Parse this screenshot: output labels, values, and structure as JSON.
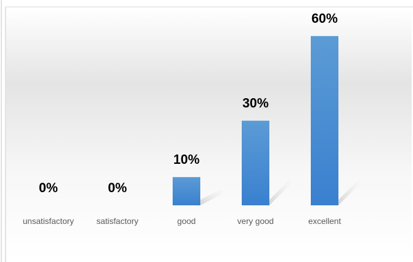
{
  "chart_data": {
    "type": "bar",
    "categories": [
      "unsatisfactory",
      "satisfactory",
      "good",
      "very good",
      "excellent"
    ],
    "values": [
      0,
      0,
      10,
      30,
      60
    ],
    "value_labels": [
      "0%",
      "0%",
      "10%",
      "30%",
      "60%"
    ],
    "color": "#4a8fd6"
  }
}
